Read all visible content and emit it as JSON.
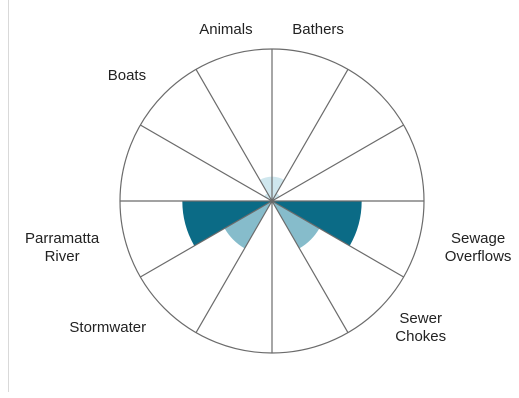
{
  "chart_data": {
    "type": "polar-area",
    "title": "",
    "segments": [
      {
        "label": [
          "Bathers"
        ],
        "value": 0.16,
        "color": "#cfe7ee"
      },
      {
        "label": [
          ""
        ],
        "value": 0.06,
        "color": "#cfe7ee"
      },
      {
        "label": [
          ""
        ],
        "value": 0.0,
        "color": "#cfe7ee"
      },
      {
        "label": [
          "Sewage",
          "Overflows"
        ],
        "value": 0.59,
        "color": "#0b6b86"
      },
      {
        "label": [
          "Sewer",
          "Chokes"
        ],
        "value": 0.36,
        "color": "#86bccb"
      },
      {
        "label": [
          ""
        ],
        "value": 0.0,
        "color": "#cfe7ee"
      },
      {
        "label": [
          ""
        ],
        "value": 0.0,
        "color": "#cfe7ee"
      },
      {
        "label": [
          "Stormwater"
        ],
        "value": 0.36,
        "color": "#86bccb"
      },
      {
        "label": [
          "Parramatta",
          "River"
        ],
        "value": 0.59,
        "color": "#0b6b86"
      },
      {
        "label": [
          ""
        ],
        "value": 0.0,
        "color": "#cfe7ee"
      },
      {
        "label": [
          "Boats"
        ],
        "value": 0.06,
        "color": "#cfe7ee"
      },
      {
        "label": [
          "Animals"
        ],
        "value": 0.16,
        "color": "#cfe7ee"
      }
    ]
  }
}
